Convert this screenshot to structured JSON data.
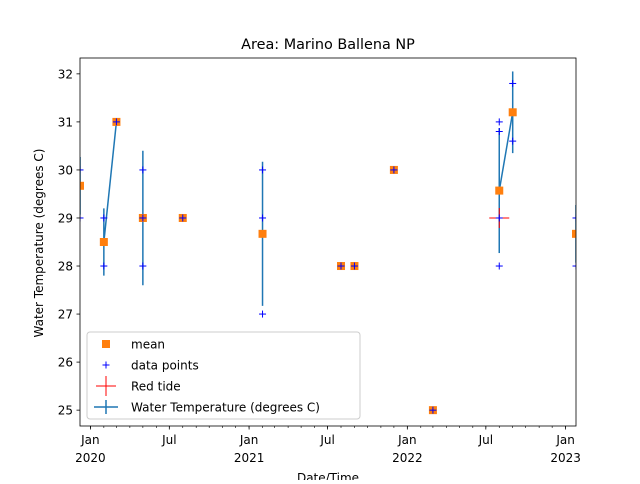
{
  "chart_data": {
    "type": "scatter",
    "title": "Area: Marino Ballena NP",
    "xlabel": "Date/Time",
    "ylabel": "Water Temperature (degrees C)",
    "xlim": [
      "2019-12-08",
      "2023-01-25"
    ],
    "ylim": [
      24.67,
      32.33
    ],
    "y_ticks": [
      25,
      26,
      27,
      28,
      29,
      30,
      31,
      32
    ],
    "x_major_ticks": [
      {
        "date": "2020-01-01",
        "label": "Jan",
        "year": "2020"
      },
      {
        "date": "2020-07-01",
        "label": "Jul",
        "year": ""
      },
      {
        "date": "2021-01-01",
        "label": "Jan",
        "year": "2021"
      },
      {
        "date": "2021-07-01",
        "label": "Jul",
        "year": ""
      },
      {
        "date": "2022-01-01",
        "label": "Jan",
        "year": "2022"
      },
      {
        "date": "2022-07-01",
        "label": "Jul",
        "year": ""
      },
      {
        "date": "2023-01-01",
        "label": "Jan",
        "year": "2023"
      }
    ],
    "legend": {
      "placement": "lower-left",
      "entries": [
        {
          "key": "mean",
          "label": "mean"
        },
        {
          "key": "points",
          "label": "data points"
        },
        {
          "key": "redtide",
          "label": "Red tide"
        },
        {
          "key": "line",
          "label": "Water Temperature (degrees C)"
        }
      ]
    },
    "colors": {
      "mean": "#ff7f0e",
      "points": "#0000ff",
      "redtide": "#ff0000",
      "line": "#1f77b4"
    },
    "means": [
      {
        "date": "2019-12-08",
        "mean": 29.67,
        "std": 0.6
      },
      {
        "date": "2020-02-01",
        "mean": 28.5,
        "std": 0.7
      },
      {
        "date": "2020-03-01",
        "mean": 31.0,
        "std": 0.0
      },
      {
        "date": "2020-05-01",
        "mean": 29.0,
        "std": 1.4
      },
      {
        "date": "2020-08-01",
        "mean": 29.0,
        "std": 0.0
      },
      {
        "date": "2021-02-01",
        "mean": 28.67,
        "std": 1.5
      },
      {
        "date": "2021-08-01",
        "mean": 28.0,
        "std": 0.0
      },
      {
        "date": "2021-09-01",
        "mean": 28.0,
        "std": 0.0
      },
      {
        "date": "2021-12-01",
        "mean": 30.0,
        "std": 0.0
      },
      {
        "date": "2022-03-01",
        "mean": 25.0,
        "std": 0.0
      },
      {
        "date": "2022-08-01",
        "mean": 29.57,
        "std": 1.3
      },
      {
        "date": "2022-09-01",
        "mean": 31.2,
        "std": 0.85
      },
      {
        "date": "2023-01-25",
        "mean": 28.67,
        "std": 0.6
      }
    ],
    "points": [
      {
        "date": "2019-12-08",
        "value": 30
      },
      {
        "date": "2019-12-08",
        "value": 29
      },
      {
        "date": "2020-02-01",
        "value": 29
      },
      {
        "date": "2020-02-01",
        "value": 28
      },
      {
        "date": "2020-03-01",
        "value": 31
      },
      {
        "date": "2020-05-01",
        "value": 30
      },
      {
        "date": "2020-05-01",
        "value": 29
      },
      {
        "date": "2020-05-01",
        "value": 28
      },
      {
        "date": "2020-08-01",
        "value": 29
      },
      {
        "date": "2021-02-01",
        "value": 30
      },
      {
        "date": "2021-02-01",
        "value": 29
      },
      {
        "date": "2021-02-01",
        "value": 27
      },
      {
        "date": "2021-08-01",
        "value": 28
      },
      {
        "date": "2021-09-01",
        "value": 28
      },
      {
        "date": "2021-12-01",
        "value": 30
      },
      {
        "date": "2022-03-01",
        "value": 25
      },
      {
        "date": "2022-08-01",
        "value": 31
      },
      {
        "date": "2022-08-01",
        "value": 30.8
      },
      {
        "date": "2022-08-01",
        "value": 29
      },
      {
        "date": "2022-08-01",
        "value": 28
      },
      {
        "date": "2022-09-01",
        "value": 31.8
      },
      {
        "date": "2022-09-01",
        "value": 30.6
      },
      {
        "date": "2023-01-25",
        "value": 29
      },
      {
        "date": "2023-01-25",
        "value": 28
      }
    ],
    "red_tide": [
      {
        "date": "2022-08-01",
        "value": 29
      }
    ],
    "line_segments": [
      [
        "2020-02-01",
        "2020-03-01"
      ],
      [
        "2022-08-01",
        "2022-09-01"
      ]
    ]
  }
}
